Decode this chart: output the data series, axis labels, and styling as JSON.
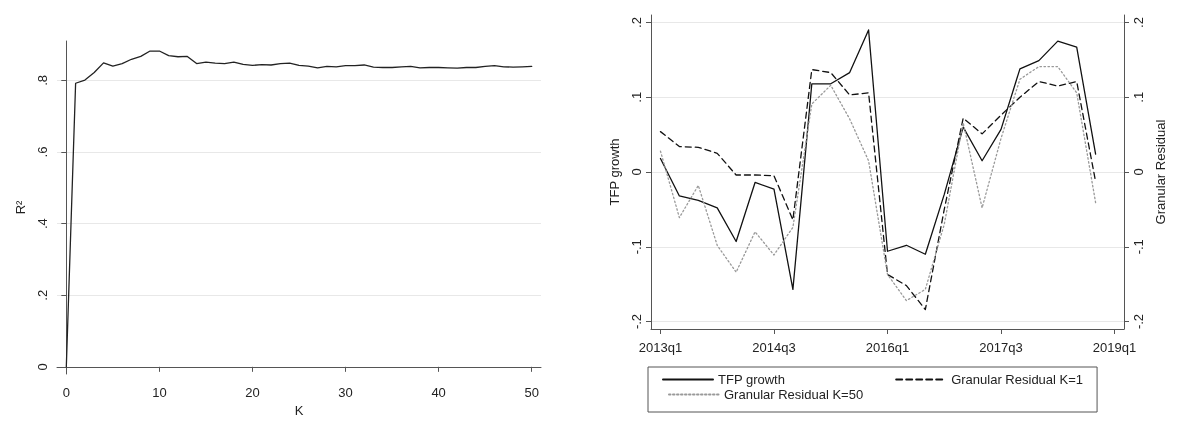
{
  "chart_data": [
    {
      "type": "line",
      "xlabel": "K",
      "ylabel": "R²",
      "x": [
        0,
        1,
        2,
        3,
        4,
        5,
        6,
        7,
        8,
        9,
        10,
        11,
        12,
        13,
        14,
        15,
        16,
        17,
        18,
        19,
        20,
        21,
        22,
        23,
        24,
        25,
        26,
        27,
        28,
        29,
        30,
        31,
        32,
        33,
        34,
        35,
        36,
        37,
        38,
        39,
        40,
        41,
        42,
        43,
        44,
        45,
        46,
        47,
        48,
        49,
        50
      ],
      "series": [
        {
          "color": "#222222",
          "values": [
            0,
            0.792,
            0.801,
            0.822,
            0.849,
            0.84,
            0.847,
            0.859,
            0.867,
            0.882,
            0.882,
            0.869,
            0.866,
            0.867,
            0.847,
            0.851,
            0.848,
            0.847,
            0.851,
            0.845,
            0.842,
            0.844,
            0.843,
            0.847,
            0.848,
            0.842,
            0.84,
            0.835,
            0.839,
            0.838,
            0.841,
            0.841,
            0.843,
            0.837,
            0.836,
            0.836,
            0.838,
            0.839,
            0.835,
            0.836,
            0.836,
            0.835,
            0.834,
            0.836,
            0.836,
            0.839,
            0.841,
            0.838,
            0.837,
            0.838,
            0.839
          ]
        }
      ],
      "xlim": [
        -1,
        51
      ],
      "xticks": [
        0,
        10,
        20,
        30,
        40,
        50
      ],
      "ylim": [
        -0.02,
        0.91
      ],
      "yticks": [
        0,
        {
          "value": 0.2,
          "label": ".2"
        },
        {
          "value": 0.4,
          "label": ".4"
        },
        {
          "value": 0.6,
          "label": ".6"
        },
        {
          "value": 0.8,
          "label": ".8"
        }
      ],
      "grid": "y",
      "marker": "none",
      "line_style": "solid"
    },
    {
      "type": "line",
      "ylabel": "TFP growth",
      "y2label": "Granular Residual",
      "categories": [
        "2013q1",
        null,
        null,
        null,
        null,
        null,
        "2014q3",
        null,
        null,
        null,
        null,
        null,
        "2016q1",
        null,
        null,
        null,
        null,
        null,
        "2017q3",
        null,
        null,
        null,
        null,
        null,
        "2019q1"
      ],
      "series": [
        {
          "name": "TFP growth",
          "color": "#111111",
          "line_style": "solid",
          "values": [
            0.018,
            -0.032,
            -0.038,
            -0.048,
            -0.093,
            -0.014,
            -0.023,
            -0.157,
            0.118,
            0.118,
            0.133,
            0.19,
            -0.106,
            -0.098,
            -0.11,
            -0.03,
            0.06,
            0.015,
            0.057,
            0.138,
            0.149,
            0.175,
            0.167,
            0.024,
            null
          ]
        },
        {
          "name": "Granular Residual K=1",
          "color": "#111111",
          "line_style": "dashed",
          "axis": "y2",
          "values": [
            0.054,
            0.034,
            0.033,
            0.025,
            -0.004,
            -0.004,
            -0.005,
            -0.064,
            0.137,
            0.133,
            0.103,
            0.106,
            -0.137,
            -0.152,
            -0.184,
            -0.05,
            0.072,
            0.051,
            0.076,
            0.1,
            0.121,
            0.115,
            0.121,
            -0.013,
            null
          ]
        },
        {
          "name": "Granular Residual K=50",
          "color": "#999999",
          "line_style": "dotted",
          "axis": "y2",
          "values": [
            0.028,
            -0.061,
            -0.018,
            -0.098,
            -0.134,
            -0.08,
            -0.111,
            -0.074,
            0.091,
            0.116,
            0.071,
            0.015,
            -0.137,
            -0.172,
            -0.157,
            -0.07,
            0.066,
            -0.048,
            0.045,
            0.124,
            0.141,
            0.141,
            0.106,
            -0.041,
            null
          ]
        }
      ],
      "ylim": [
        -0.21,
        0.21
      ],
      "yticks": [
        {
          "value": -0.2,
          "label": "-.2"
        },
        {
          "value": -0.1,
          "label": "-.1"
        },
        0,
        {
          "value": 0.1,
          "label": ".1"
        },
        {
          "value": 0.2,
          "label": ".2"
        }
      ],
      "y2lim": [
        -0.21,
        0.21
      ],
      "y2ticks": [
        {
          "value": -0.2,
          "label": "-.2"
        },
        {
          "value": -0.1,
          "label": "-.1"
        },
        0,
        {
          "value": 0.1,
          "label": ".1"
        },
        {
          "value": 0.2,
          "label": ".2"
        }
      ],
      "grid": "y",
      "legend": "bottom",
      "marker": "none"
    }
  ]
}
